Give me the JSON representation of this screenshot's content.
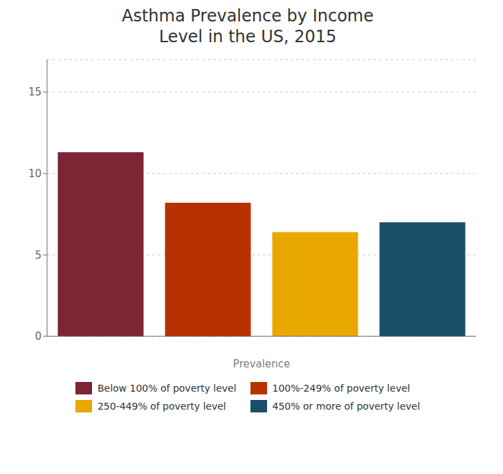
{
  "chart_data": {
    "type": "bar",
    "title": "Asthma Prevalence by Income\nLevel in the US, 2015",
    "xlabel": "Prevalence",
    "categories": [
      "Below 100% of poverty level",
      "100%-249% of poverty level",
      "250-449% of poverty level",
      "450% or more of poverty level"
    ],
    "values": [
      11.3,
      8.2,
      6.4,
      7.0
    ],
    "colors": [
      "#7B2535",
      "#B83200",
      "#E8A800",
      "#1A4F6A"
    ],
    "ylim": [
      0,
      17
    ],
    "yticks": [
      0,
      5,
      10,
      15
    ],
    "grid": true,
    "legend": "bottom",
    "tick_labels": "y"
  }
}
